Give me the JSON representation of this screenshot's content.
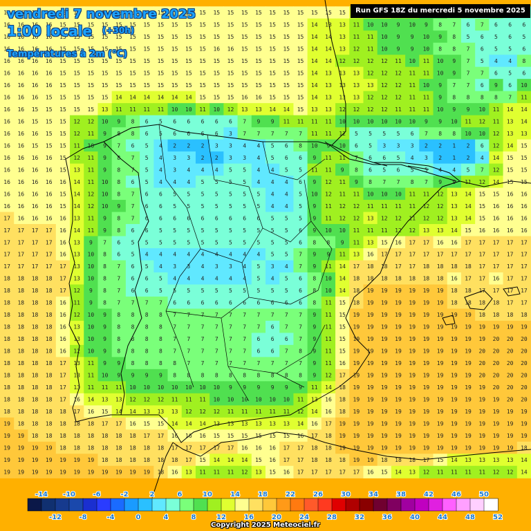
{
  "header": {
    "date_title": "vendredi 7 novembre 2025",
    "time_title": "1:00 locale",
    "lead_title": "(+30h)",
    "variable_title": "Températures à 2m (°C)",
    "run_label": "Run GFS 18Z du mercredi 5 novembre 2025"
  },
  "footer": {
    "copyright": "Copyright 2025 Meteociel.fr"
  },
  "colors": {
    "sea": "#ffb000",
    "coastline": "#000000",
    "scale": [
      "#0b1848",
      "#103070",
      "#163a8e",
      "#1a48ac",
      "#1a2fd0",
      "#2a3cff",
      "#1a6bff",
      "#1a9bff",
      "#2ac0ff",
      "#60e8ff",
      "#7affd8",
      "#7aff7a",
      "#50e050",
      "#a0f020",
      "#e0ff30",
      "#ffff90",
      "#ffe060",
      "#ffc83a",
      "#ff9a18",
      "#ff7a10",
      "#ff5a2a",
      "#ff3a20",
      "#e00000",
      "#b00000",
      "#8a0000",
      "#700030",
      "#800060",
      "#a000a0",
      "#c000c0",
      "#e020e0",
      "#ff60ff",
      "#ffa0ff",
      "#ffd0ff",
      "#ffffff"
    ]
  },
  "legend": {
    "upper_labels": [
      "-14",
      "-10",
      "-6",
      "-2",
      "2",
      "6",
      "10",
      "14",
      "18",
      "22",
      "26",
      "30",
      "34",
      "38",
      "42",
      "46",
      "50"
    ],
    "lower_labels": [
      "-12",
      "-8",
      "-4",
      "0",
      "4",
      "8",
      "12",
      "16",
      "20",
      "24",
      "28",
      "32",
      "36",
      "40",
      "44",
      "48",
      "52"
    ]
  },
  "map_data": {
    "cell_values_rows": [
      "16 16 16 16 15 15 15 15 15 15 15 15 15 15 15 15 15 15 15 15 15 15 15 15 15 14 14 13 12 11 10 9 8 7 6 7 6 6",
      "16 16 16 16 15 15 15 15 15 15 15 15 15 15 15 15 15 15 15 15 15 15 14 13 13 11 10 10 9 10 9 8 7 6 7 6 6 6",
      "16 16 16 16 15 15 15 15 15 15 15 15 15 15 15 15 15 15 15 15 15 15 14 14 13 11 11 10 9 9 10 9 8 5 6 5 6 5",
      "16 16 16 16 15 15 15 15 15 15 15 15 15 15 15 16 16 15 15 15 15 15 14 14 13 12 11 10 9 9 10 8 8 7 6 5 5 6",
      "16 16 16 16 15 15 15 15 15 15 15 15 15 15 15 15 15 15 15 15 15 15 14 14 12 12 12 12 11 10 11 10 9 7 5 4 4 8",
      "16 16 16 16 15 15 15 15 15 15 15 15 15 15 15 15 15 15 15 15 15 15 14 13 13 13 12 12 12 11 11 10 9 7 7 6 5 6",
      "16 16 16 16 15 15 15 15 15 15 15 15 15 15 15 15 15 15 15 15 15 15 14 13 13 13 13 12 12 11 10 9 7 7 6 9 6 10",
      "16 16 16 15 15 15 15 15 14 14 14 14 14 14 15 15 15 16 16 15 15 15 14 13 13 13 12 12 12 11 11 9 8 8 8 8 7 11",
      "16 16 15 15 15 15 15 13 11 11 11 11 10 10 11 10 12 13 13 14 14 15 13 13 12 12 12 12 11 11 11 10 9 9 10 11 14 14",
      "16 16 15 15 15 12 12 10 9 8 6 5 6 6 6 6 6 7 9 9 11 11 11 11 10 10 10 10 10 10 9 9 10 11 12 11 13 14",
      "16 16 16 15 15 12 11 9 8 8 6 5 6 6 6 6 3 7 7 7 7 7 11 11 12 5 5 5 5 6 7 8 8 10 10 12 13 13",
      "16 16 15 15 15 11 10 9 7 6 5 4 2 2 2 3 3 4 4 5 6 8 10 9 10 6 5 3 3 3 2 2 1 2 6 12 14 15",
      "16 16 16 16 15 12 11 9 8 7 5 4 3 3 2 2 3 3 4 5 6 6 9 11 11 7 6 6 5 4 3 2 1 2 4 14 15 15",
      "16 16 16 16 15 13 11 9 8 7 5 4 3 4 4 4 5 5 4 4 5 5 11 11 9 8 6 5 6 5 5 4 4 5 7 12 15 15",
      "16 16 16 16 16 14 11 10 8 6 5 4 4 4 5 5 5 5 4 4 4 6 9 12 11 9 8 7 7 8 7 9 9 11 12 14 15 15",
      "16 16 16 16 15 14 12 10 8 7 6 6 5 5 5 5 5 5 5 4 4 5 10 12 11 11 10 10 10 11 11 12 13 14 15 15 16 16",
      "16 16 16 16 15 14 12 10 9 7 6 6 5 5 5 5 5 5 5 4 4 5 9 11 12 12 11 11 11 11 12 12 13 14 15 16 16 16",
      "17 16 16 16 16 13 11 9 8 7 6 6 6 6 6 6 6 6 6 5 5 5 9 11 12 12 13 12 12 11 12 12 13 14 15 16 16 16",
      "17 17 17 17 16 14 11 9 8 6 6 5 5 5 5 5 5 5 5 5 5 6 9 10 10 11 11 11 12 12 13 13 14 15 16 16 16 16",
      "17 17 17 17 16 13 9 7 6 5 5 5 5 5 5 5 5 5 5 5 5 6 8 8 9 11 13 15 16 17 17 16 16 17 17 17 17 17",
      "17 17 17 17 16 13 10 8 6 5 4 4 4 4 4 4 4 4 4 5 5 7 9 9 11 13 16 17 17 17 17 17 17 17 17 17 17 17",
      "17 17 17 17 17 13 10 8 7 6 5 4 3 3 4 3 3 4 5 3 4 7 9 11 14 17 18 18 17 17 18 18 18 18 17 17 17 17",
      "18 18 18 18 17 13 10 8 7 6 6 5 4 4 4 4 4 4 5 4 5 6 8 10 14 18 18 18 18 18 18 18 16 17 17 16 17 17",
      "18 18 18 18 17 12 9 8 7 6 6 5 5 5 5 5 5 5 5 5 5 6 8 10 14 18 19 19 19 19 19 19 18 18 17 17 17 17",
      "18 18 18 18 16 11 9 8 7 7 7 7 6 6 6 6 6 6 6 6 6 6 8 11 15 18 19 19 19 19 19 19 18 18 18 18 17 17",
      "18 18 18 18 16 12 10 9 8 8 8 8 7 7 7 7 7 7 7 7 7 7 9 11 15 19 19 19 19 19 19 19 19 19 18 18 18 18",
      "18 18 18 18 16 13 10 9 8 8 8 8 7 7 7 7 7 7 7 6 7 7 9 11 15 19 19 19 19 19 19 19 19 19 19 19 19 19",
      "18 18 18 18 16 13 10 9 8 8 8 8 7 7 7 7 7 7 6 6 6 7 9 11 15 19 19 19 19 19 19 19 19 19 19 20 20 20",
      "18 18 18 18 16 12 10 9 8 8 8 8 7 7 7 7 7 7 6 6 7 8 9 11 15 19 19 19 19 19 19 19 19 19 20 20 20 20",
      "18 18 18 18 17 13 11 9 9 8 8 8 8 7 7 7 7 7 7 7 7 7 9 11 16 19 19 19 19 19 19 19 19 19 20 20 20 20",
      "18 18 18 18 17 13 11 10 9 9 9 9 8 8 8 8 8 8 8 8 8 8 9 12 17 19 19 19 19 19 19 19 19 19 20 20 20 20",
      "18 18 18 18 17 13 11 11 11 10 10 10 10 10 10 10 9 9 9 9 9 9 11 14 18 19 19 19 19 19 19 19 19 19 19 20 20 20",
      "18 18 18 18 17 16 14 13 13 12 12 12 11 11 11 10 10 10 10 10 10 11 13 16 18 19 19 19 19 19 19 19 19 19 19 19 20 20",
      "18 18 18 18 18 17 16 15 14 14 13 13 13 12 12 12 11 11 11 11 11 12 14 16 18 19 19 19 19 19 19 19 19 19 19 19 19 19",
      "19 18 18 18 18 18 18 17 17 16 15 15 14 14 14 13 13 13 13 13 13 14 16 17 19 19 19 19 19 19 19 19 19 19 19 19 19 19",
      "19 19 18 18 18 18 18 18 18 18 17 17 16 16 16 15 15 15 15 15 15 16 17 18 19 19 19 19 19 19 19 19 19 19 19 19 19 19",
      "19 19 19 19 18 18 18 18 18 18 18 18 17 17 17 17 17 16 16 16 17 17 18 18 19 19 19 19 19 19 19 19 19 19 19 19 19 18",
      "19 19 19 19 19 19 19 18 18 18 18 18 18 17 15 14 14 14 15 16 17 17 18 18 18 19 19 18 18 18 17 15 14 13 13 13 13 14",
      "19 19 19 19 19 19 19 19 19 19 19 18 16 13 11 11 11 12 13 15 16 17 17 17 17 17 16 15 14 13 12 11 11 11 11 12 12 14"
    ]
  }
}
